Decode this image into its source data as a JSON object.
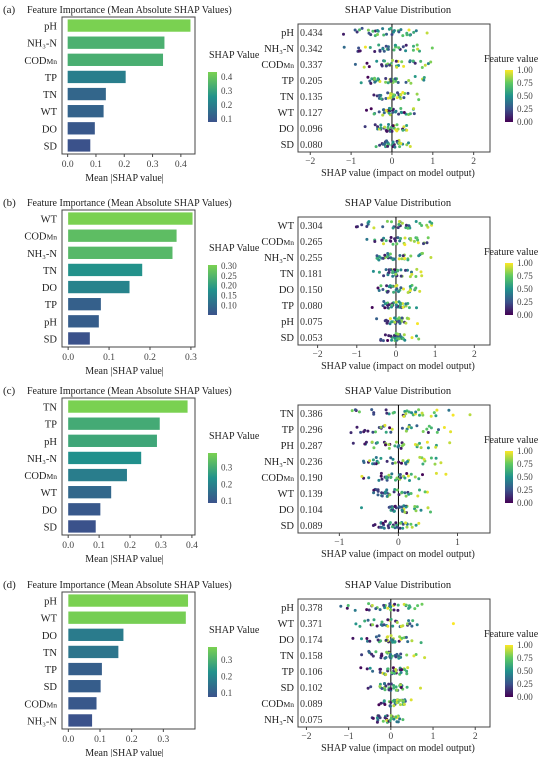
{
  "panel_titles": {
    "importance": "Feature Importance (Mean Absolute SHAP Values)",
    "distribution": "SHAP Value Distribution"
  },
  "labels": {
    "importance_xlabel": "Mean |SHAP value|",
    "distribution_xlabel": "SHAP value (impact on model output)",
    "importance_colorbar": "SHAP Value",
    "distribution_colorbar": "Feature value"
  },
  "colors": {
    "viridis": [
      "#440154",
      "#3b528b",
      "#21918c",
      "#5ec962",
      "#fde725"
    ],
    "frame": "#444444",
    "zero_line": "#000000"
  },
  "chart_data": [
    {
      "panel": "(a)",
      "type": "bar",
      "orientation": "horizontal",
      "categories": [
        "pH",
        "NH₃-N",
        "CODMn",
        "TP",
        "TN",
        "WT",
        "DO",
        "SD"
      ],
      "values": [
        0.434,
        0.342,
        0.337,
        0.205,
        0.135,
        0.127,
        0.096,
        0.08
      ],
      "xlim": [
        -0.02,
        0.45
      ],
      "xticks": [
        "0.0",
        "0.1",
        "0.2",
        "0.3",
        "0.4"
      ],
      "xtick_values": [
        0,
        0.1,
        0.2,
        0.3,
        0.4
      ],
      "colorbar_ticks": [
        "0.4",
        "0.3",
        "0.2",
        "0.1"
      ],
      "colorbar_tick_values": [
        0.4,
        0.3,
        0.2,
        0.1
      ],
      "colorbar_range": [
        0.08,
        0.434
      ],
      "beeswarm": {
        "type": "scatter",
        "features": [
          "pH",
          "NH₃-N",
          "CODMn",
          "TP",
          "TN",
          "WT",
          "DO",
          "SD"
        ],
        "value_labels": [
          "0.434",
          "0.342",
          "0.337",
          "0.205",
          "0.135",
          "0.127",
          "0.096",
          "0.080"
        ],
        "xlim": [
          -2.3,
          2.4
        ],
        "xticks": [
          "−2",
          "−1",
          "0",
          "1",
          "2"
        ],
        "xtick_values": [
          -2,
          -1,
          0,
          1,
          2
        ],
        "colorbar_ticks": [
          "1.00",
          "0.75",
          "0.50",
          "0.25",
          "0.00"
        ]
      }
    },
    {
      "panel": "(b)",
      "type": "bar",
      "orientation": "horizontal",
      "categories": [
        "WT",
        "CODMn",
        "NH₃-N",
        "TN",
        "DO",
        "TP",
        "pH",
        "SD"
      ],
      "values": [
        0.304,
        0.265,
        0.255,
        0.181,
        0.15,
        0.08,
        0.075,
        0.053
      ],
      "xlim": [
        -0.015,
        0.31
      ],
      "xticks": [
        "0.0",
        "0.1",
        "0.2",
        "0.3"
      ],
      "xtick_values": [
        0,
        0.1,
        0.2,
        0.3
      ],
      "colorbar_ticks": [
        "0.30",
        "0.25",
        "0.20",
        "0.15",
        "0.10"
      ],
      "colorbar_tick_values": [
        0.3,
        0.25,
        0.2,
        0.15,
        0.1
      ],
      "colorbar_range": [
        0.053,
        0.304
      ],
      "beeswarm": {
        "type": "scatter",
        "features": [
          "WT",
          "CODMn",
          "NH₃-N",
          "TN",
          "DO",
          "TP",
          "pH",
          "SD"
        ],
        "value_labels": [
          "0.304",
          "0.265",
          "0.255",
          "0.181",
          "0.150",
          "0.080",
          "0.075",
          "0.053"
        ],
        "xlim": [
          -2.5,
          2.4
        ],
        "xticks": [
          "−2",
          "−1",
          "0",
          "1",
          "2"
        ],
        "xtick_values": [
          -2,
          -1,
          0,
          1,
          2
        ],
        "colorbar_ticks": [
          "1.00",
          "0.75",
          "0.50",
          "0.25",
          "0.00"
        ]
      }
    },
    {
      "panel": "(c)",
      "type": "bar",
      "orientation": "horizontal",
      "categories": [
        "TN",
        "TP",
        "pH",
        "NH₃-N",
        "CODMn",
        "WT",
        "DO",
        "SD"
      ],
      "values": [
        0.386,
        0.296,
        0.287,
        0.236,
        0.19,
        0.139,
        0.104,
        0.089
      ],
      "xlim": [
        -0.02,
        0.41
      ],
      "xticks": [
        "0.0",
        "0.1",
        "0.2",
        "0.3",
        "0.4"
      ],
      "xtick_values": [
        0,
        0.1,
        0.2,
        0.3,
        0.4
      ],
      "colorbar_ticks": [
        "0.3",
        "0.2",
        "0.1"
      ],
      "colorbar_tick_values": [
        0.3,
        0.2,
        0.1
      ],
      "colorbar_range": [
        0.089,
        0.386
      ],
      "beeswarm": {
        "type": "scatter",
        "features": [
          "TN",
          "TP",
          "PH",
          "NH₃-N",
          "CODMn",
          "WT",
          "DO",
          "SD"
        ],
        "value_labels": [
          "0.386",
          "0.296",
          "0.287",
          "0.236",
          "0.190",
          "0.139",
          "0.104",
          "0.089"
        ],
        "xlim": [
          -1.7,
          1.55
        ],
        "xticks": [
          "−1",
          "0",
          "1"
        ],
        "xtick_values": [
          -1,
          0,
          1
        ],
        "colorbar_ticks": [
          "1.00",
          "0.75",
          "0.50",
          "0.25",
          "0.00"
        ]
      }
    },
    {
      "panel": "(d)",
      "type": "bar",
      "orientation": "horizontal",
      "categories": [
        "pH",
        "WT",
        "DO",
        "TN",
        "TP",
        "SD",
        "CODMn",
        "NH₃-N"
      ],
      "values": [
        0.378,
        0.371,
        0.174,
        0.158,
        0.106,
        0.102,
        0.089,
        0.075
      ],
      "xlim": [
        -0.02,
        0.4
      ],
      "xticks": [
        "0.0",
        "0.1",
        "0.2",
        "0.3"
      ],
      "xtick_values": [
        0,
        0.1,
        0.2,
        0.3
      ],
      "colorbar_ticks": [
        "0.3",
        "0.2",
        "0.1"
      ],
      "colorbar_tick_values": [
        0.3,
        0.2,
        0.1
      ],
      "colorbar_range": [
        0.075,
        0.378
      ],
      "beeswarm": {
        "type": "scatter",
        "features": [
          "pH",
          "WT",
          "DO",
          "TN",
          "TP",
          "SD",
          "CODMn",
          "NH₃-N"
        ],
        "value_labels": [
          "0.378",
          "0.371",
          "0.174",
          "0.158",
          "0.106",
          "0.102",
          "0.089",
          "0.075"
        ],
        "xlim": [
          -2.2,
          2.35
        ],
        "xticks": [
          "−2",
          "−1",
          "0",
          "1",
          "2"
        ],
        "xtick_values": [
          -2,
          -1,
          0,
          1,
          2
        ],
        "colorbar_ticks": [
          "1.00",
          "0.75",
          "0.50",
          "0.25",
          "0.00"
        ]
      }
    }
  ]
}
